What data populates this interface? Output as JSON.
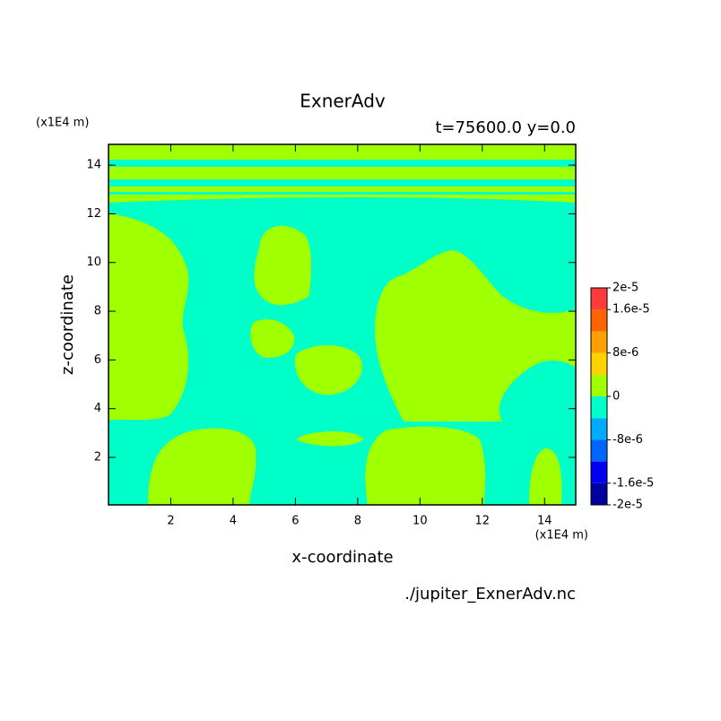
{
  "chart_data": {
    "type": "contour",
    "title": "ExnerAdv",
    "subtitle": "t=75600.0 y=0.0",
    "x_label": "x-coordinate",
    "y_label": "z-coordinate",
    "x_unit": "(x1E4 m)",
    "y_unit": "(x1E4 m)",
    "source": "./jupiter_ExnerAdv.nc",
    "xlim": [
      0,
      15
    ],
    "ylim": [
      0.05,
      14.85
    ],
    "xticks": [
      2,
      4,
      6,
      8,
      10,
      12,
      14
    ],
    "yticks": [
      2,
      4,
      6,
      8,
      10,
      12,
      14
    ],
    "colorbar": {
      "levels": [
        -2e-05,
        -1.6e-05,
        -1.2e-05,
        -8e-06,
        -4e-06,
        0,
        4e-06,
        8e-06,
        1.2e-05,
        1.6e-05,
        2e-05
      ],
      "colors": [
        "#0000a0",
        "#0000f0",
        "#0064ff",
        "#00aaff",
        "#00ffc8",
        "#a0ff00",
        "#ffd200",
        "#ffa000",
        "#ff6400",
        "#ff3a3a"
      ],
      "ticks": [
        {
          "value": -2e-05,
          "label": "-2e-5"
        },
        {
          "value": -1.6e-05,
          "label": "-1.6e-5"
        },
        {
          "value": -8e-06,
          "label": "-8e-6"
        },
        {
          "value": 0,
          "label": "0"
        },
        {
          "value": 8e-06,
          "label": "8e-6"
        },
        {
          "value": 1.6e-05,
          "label": "1.6e-5"
        },
        {
          "value": 2e-05,
          "label": "2e-5"
        }
      ]
    }
  }
}
